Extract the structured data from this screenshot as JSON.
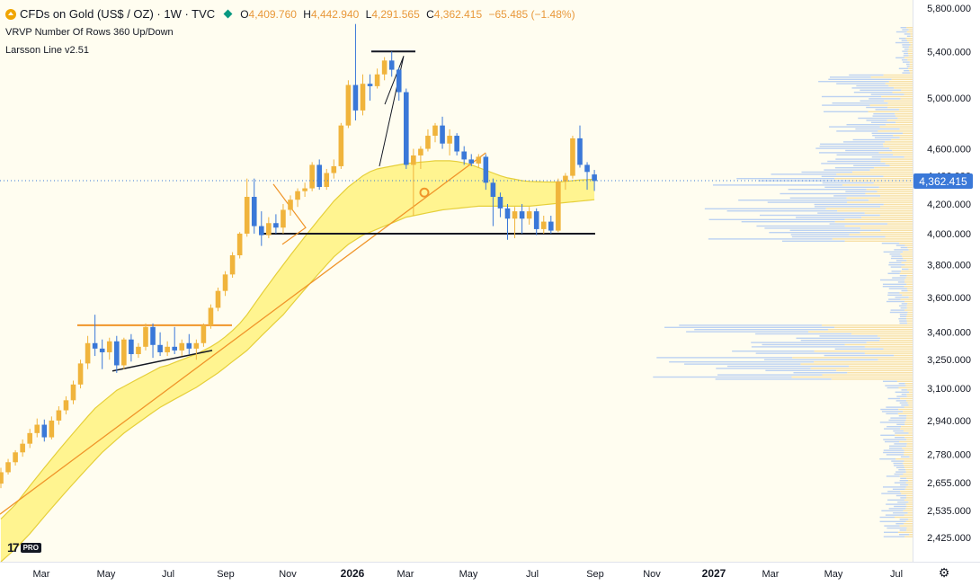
{
  "header": {
    "symbol_title": "CFDs on Gold (US$ / OZ) · 1W · TVC",
    "ohlc": {
      "open_label": "O",
      "open": "4,409.760",
      "high_label": "H",
      "high": "4,442.940",
      "low_label": "L",
      "low": "4,291.565",
      "close_label": "C",
      "close": "4,362.415",
      "change": "−65.485 (−1.48%)"
    },
    "indicator_1": "VRVP Number Of Rows 360 Up/Down",
    "indicator_2": "Larsson Line v2.51"
  },
  "logo": {
    "text": "17",
    "badge": "PRO"
  },
  "colors": {
    "background": "#fffdf0",
    "up_candle": "#f0b43c",
    "down_candle": "#3a78d8",
    "larsson_fill": "#fff38a",
    "larsson_edge": "#e6cf3a",
    "trendline": "#f0952a",
    "last_price_badge": "#3a78d8"
  },
  "icons": {
    "symbol": "gold-coin-icon",
    "status": "market-status-icon",
    "settings": "gear-icon"
  },
  "chart_data": {
    "type": "candlestick",
    "timeframe": "1W",
    "x_ticks": [
      "Mar",
      "May",
      "Jul",
      "Sep",
      "Nov",
      "2026",
      "Mar",
      "May",
      "Jul",
      "Sep",
      "Nov",
      "2027",
      "Mar",
      "May",
      "Jul"
    ],
    "y_ticks": [
      "5,800.000",
      "5,400.000",
      "5,000.000",
      "4,600.000",
      "4,200.000",
      "4,000.000",
      "3,800.000",
      "3,600.000",
      "3,400.000",
      "3,250.000",
      "3,100.000",
      "2,940.000",
      "2,780.000",
      "2,655.000",
      "2,535.000",
      "2,425.000"
    ],
    "y_scale": "log",
    "last_price_label": "4,362.415",
    "last_price": 4362.415,
    "hidden_tick_label": "4,400.000",
    "candles": [
      {
        "o": 2650,
        "h": 2720,
        "l": 2630,
        "c": 2700
      },
      {
        "o": 2700,
        "h": 2760,
        "l": 2690,
        "c": 2745
      },
      {
        "o": 2745,
        "h": 2800,
        "l": 2730,
        "c": 2790
      },
      {
        "o": 2790,
        "h": 2850,
        "l": 2770,
        "c": 2830
      },
      {
        "o": 2830,
        "h": 2900,
        "l": 2810,
        "c": 2880
      },
      {
        "o": 2880,
        "h": 2950,
        "l": 2860,
        "c": 2920
      },
      {
        "o": 2920,
        "h": 2945,
        "l": 2840,
        "c": 2860
      },
      {
        "o": 2860,
        "h": 2960,
        "l": 2850,
        "c": 2940
      },
      {
        "o": 2940,
        "h": 3010,
        "l": 2920,
        "c": 2990
      },
      {
        "o": 2990,
        "h": 3060,
        "l": 2970,
        "c": 3040
      },
      {
        "o": 3040,
        "h": 3140,
        "l": 3020,
        "c": 3120
      },
      {
        "o": 3120,
        "h": 3250,
        "l": 3100,
        "c": 3230
      },
      {
        "o": 3230,
        "h": 3380,
        "l": 3200,
        "c": 3340
      },
      {
        "o": 3340,
        "h": 3500,
        "l": 3270,
        "c": 3310
      },
      {
        "o": 3310,
        "h": 3360,
        "l": 3200,
        "c": 3290
      },
      {
        "o": 3290,
        "h": 3370,
        "l": 3250,
        "c": 3350
      },
      {
        "o": 3350,
        "h": 3380,
        "l": 3180,
        "c": 3220
      },
      {
        "o": 3220,
        "h": 3370,
        "l": 3200,
        "c": 3360
      },
      {
        "o": 3360,
        "h": 3390,
        "l": 3240,
        "c": 3280
      },
      {
        "o": 3280,
        "h": 3340,
        "l": 3260,
        "c": 3320
      },
      {
        "o": 3320,
        "h": 3450,
        "l": 3300,
        "c": 3430
      },
      {
        "o": 3430,
        "h": 3450,
        "l": 3260,
        "c": 3330
      },
      {
        "o": 3330,
        "h": 3400,
        "l": 3270,
        "c": 3290
      },
      {
        "o": 3290,
        "h": 3350,
        "l": 3270,
        "c": 3320
      },
      {
        "o": 3320,
        "h": 3430,
        "l": 3280,
        "c": 3300
      },
      {
        "o": 3300,
        "h": 3360,
        "l": 3270,
        "c": 3340
      },
      {
        "o": 3340,
        "h": 3390,
        "l": 3280,
        "c": 3310
      },
      {
        "o": 3310,
        "h": 3360,
        "l": 3250,
        "c": 3340
      },
      {
        "o": 3340,
        "h": 3450,
        "l": 3320,
        "c": 3440
      },
      {
        "o": 3440,
        "h": 3560,
        "l": 3420,
        "c": 3540
      },
      {
        "o": 3540,
        "h": 3660,
        "l": 3520,
        "c": 3640
      },
      {
        "o": 3640,
        "h": 3760,
        "l": 3610,
        "c": 3740
      },
      {
        "o": 3740,
        "h": 3880,
        "l": 3720,
        "c": 3860
      },
      {
        "o": 3860,
        "h": 4010,
        "l": 3840,
        "c": 4000
      },
      {
        "o": 4000,
        "h": 4380,
        "l": 3980,
        "c": 4250
      },
      {
        "o": 4250,
        "h": 4380,
        "l": 4000,
        "c": 4050
      },
      {
        "o": 4050,
        "h": 4150,
        "l": 3920,
        "c": 3990
      },
      {
        "o": 3990,
        "h": 4110,
        "l": 3970,
        "c": 4070
      },
      {
        "o": 4070,
        "h": 4130,
        "l": 4000,
        "c": 4040
      },
      {
        "o": 4040,
        "h": 4200,
        "l": 4000,
        "c": 4160
      },
      {
        "o": 4160,
        "h": 4260,
        "l": 4120,
        "c": 4230
      },
      {
        "o": 4230,
        "h": 4310,
        "l": 4180,
        "c": 4290
      },
      {
        "o": 4290,
        "h": 4350,
        "l": 4250,
        "c": 4310
      },
      {
        "o": 4310,
        "h": 4500,
        "l": 4290,
        "c": 4480
      },
      {
        "o": 4480,
        "h": 4520,
        "l": 4300,
        "c": 4320
      },
      {
        "o": 4320,
        "h": 4450,
        "l": 4300,
        "c": 4420
      },
      {
        "o": 4420,
        "h": 4520,
        "l": 4380,
        "c": 4470
      },
      {
        "o": 4470,
        "h": 4800,
        "l": 4450,
        "c": 4780
      },
      {
        "o": 4780,
        "h": 5150,
        "l": 4760,
        "c": 5110
      },
      {
        "o": 5110,
        "h": 5650,
        "l": 4820,
        "c": 4900
      },
      {
        "o": 4900,
        "h": 5200,
        "l": 4860,
        "c": 5120
      },
      {
        "o": 5120,
        "h": 5200,
        "l": 4980,
        "c": 5100
      },
      {
        "o": 5100,
        "h": 5250,
        "l": 5080,
        "c": 5200
      },
      {
        "o": 5200,
        "h": 5350,
        "l": 5150,
        "c": 5320
      },
      {
        "o": 5320,
        "h": 5400,
        "l": 5180,
        "c": 5240
      },
      {
        "o": 5240,
        "h": 5260,
        "l": 4980,
        "c": 5050
      },
      {
        "o": 5050,
        "h": 5080,
        "l": 4450,
        "c": 4480
      },
      {
        "o": 4480,
        "h": 4600,
        "l": 4120,
        "c": 4550
      },
      {
        "o": 4550,
        "h": 4620,
        "l": 4450,
        "c": 4600
      },
      {
        "o": 4600,
        "h": 4750,
        "l": 4580,
        "c": 4700
      },
      {
        "o": 4700,
        "h": 4800,
        "l": 4650,
        "c": 4780
      },
      {
        "o": 4780,
        "h": 4850,
        "l": 4600,
        "c": 4640
      },
      {
        "o": 4640,
        "h": 4750,
        "l": 4550,
        "c": 4700
      },
      {
        "o": 4700,
        "h": 4720,
        "l": 4550,
        "c": 4580
      },
      {
        "o": 4580,
        "h": 4620,
        "l": 4480,
        "c": 4520
      },
      {
        "o": 4520,
        "h": 4560,
        "l": 4470,
        "c": 4490
      },
      {
        "o": 4490,
        "h": 4560,
        "l": 4460,
        "c": 4540
      },
      {
        "o": 4540,
        "h": 4560,
        "l": 4300,
        "c": 4350
      },
      {
        "o": 4350,
        "h": 4380,
        "l": 4050,
        "c": 4250
      },
      {
        "o": 4250,
        "h": 4280,
        "l": 4110,
        "c": 4170
      },
      {
        "o": 4170,
        "h": 4200,
        "l": 3960,
        "c": 4100
      },
      {
        "o": 4100,
        "h": 4180,
        "l": 3970,
        "c": 4150
      },
      {
        "o": 4150,
        "h": 4200,
        "l": 4000,
        "c": 4100
      },
      {
        "o": 4100,
        "h": 4180,
        "l": 4060,
        "c": 4150
      },
      {
        "o": 4150,
        "h": 4170,
        "l": 3990,
        "c": 4030
      },
      {
        "o": 4030,
        "h": 4120,
        "l": 4000,
        "c": 4080
      },
      {
        "o": 4080,
        "h": 4120,
        "l": 4000,
        "c": 4020
      },
      {
        "o": 4020,
        "h": 4380,
        "l": 4010,
        "c": 4360
      },
      {
        "o": 4360,
        "h": 4420,
        "l": 4300,
        "c": 4400
      },
      {
        "o": 4400,
        "h": 4700,
        "l": 4380,
        "c": 4680
      },
      {
        "o": 4680,
        "h": 4780,
        "l": 4460,
        "c": 4480
      },
      {
        "o": 4480,
        "h": 4500,
        "l": 4300,
        "c": 4428
      },
      {
        "o": 4409.76,
        "h": 4442.94,
        "l": 4291.565,
        "c": 4362.415
      }
    ],
    "larsson_band_upper": [
      2500,
      2530,
      2560,
      2600,
      2640,
      2680,
      2720,
      2760,
      2800,
      2840,
      2880,
      2920,
      2960,
      3000,
      3030,
      3060,
      3090,
      3110,
      3130,
      3150,
      3170,
      3190,
      3210,
      3220,
      3235,
      3250,
      3265,
      3280,
      3300,
      3320,
      3345,
      3375,
      3410,
      3450,
      3500,
      3560,
      3620,
      3680,
      3740,
      3800,
      3860,
      3920,
      3980,
      4040,
      4100,
      4160,
      4220,
      4270,
      4320,
      4360,
      4400,
      4430,
      4450,
      4460,
      4470,
      4480,
      4490,
      4495,
      4500,
      4505,
      4510,
      4510,
      4510,
      4505,
      4495,
      4480,
      4460,
      4440,
      4420,
      4400,
      4385,
      4375,
      4365,
      4360,
      4358,
      4356,
      4355,
      4355,
      4360,
      4365,
      4370,
      4372,
      4375
    ],
    "larsson_band_lower": [
      2330,
      2355,
      2380,
      2410,
      2440,
      2475,
      2510,
      2545,
      2580,
      2615,
      2650,
      2685,
      2720,
      2755,
      2790,
      2820,
      2850,
      2880,
      2905,
      2930,
      2955,
      2980,
      3005,
      3025,
      3045,
      3065,
      3085,
      3105,
      3130,
      3155,
      3180,
      3210,
      3240,
      3270,
      3300,
      3340,
      3380,
      3420,
      3460,
      3500,
      3550,
      3600,
      3650,
      3700,
      3750,
      3800,
      3850,
      3890,
      3930,
      3960,
      3990,
      4010,
      4030,
      4050,
      4070,
      4090,
      4110,
      4120,
      4130,
      4140,
      4150,
      4160,
      4165,
      4170,
      4175,
      4180,
      4185,
      4185,
      4185,
      4185,
      4185,
      4185,
      4185,
      4185,
      4190,
      4195,
      4200,
      4205,
      4210,
      4215,
      4220,
      4225,
      4230
    ],
    "support_level": 4000,
    "resistance_2025": 3440
  }
}
